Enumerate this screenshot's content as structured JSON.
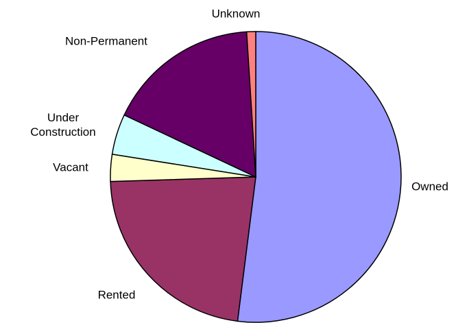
{
  "chart_data": {
    "type": "pie",
    "categories": [
      "Owned",
      "Rented",
      "Vacant",
      "Under Construction",
      "Non-Permanent",
      "Unknown"
    ],
    "values": [
      52,
      22.5,
      3,
      4.5,
      17,
      1
    ],
    "colors": [
      "#9999ff",
      "#993366",
      "#ffffcc",
      "#ccffff",
      "#660066",
      "#ff8080"
    ]
  }
}
